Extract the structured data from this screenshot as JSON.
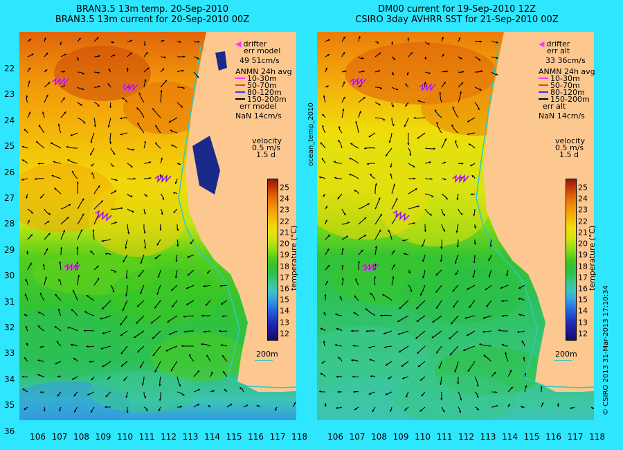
{
  "left_panel": {
    "title_line1": "BRAN3.5 13m temp. 20-Sep-2010",
    "title_line2": "BRAN3.5 13m current for 20-Sep-2010 00Z",
    "legend": {
      "drifter": "drifter",
      "err": "err model",
      "err_value": "49 51cm/s",
      "anmn": "ANMN 24h avg",
      "depths": [
        "10-30m",
        "50-70m",
        "80-120m",
        "150-200m"
      ],
      "err2": "err model",
      "err2_value": "NaN 14cm/s",
      "velocity": "velocity",
      "vel_value": "0.5 m/s",
      "vel_time": "1.5 d"
    },
    "side_label": "ocean_temp_2010",
    "contour_label": "200m"
  },
  "right_panel": {
    "title_line1": "DM00 current for 19-Sep-2010 12Z",
    "title_line2": "CSIRO 3day AVHRR SST for 21-Sep-2010 00Z",
    "legend": {
      "drifter": "drifter",
      "err": "err alt",
      "err_value": "33 36cm/s",
      "anmn": "ANMN 24h avg",
      "depths": [
        "10-30m",
        "50-70m",
        "80-120m",
        "150-200m"
      ],
      "err2": "err alt",
      "err2_value": "NaN 14cm/s",
      "velocity": "velocity",
      "vel_value": "0.5 m/s",
      "vel_time": "1.5 d"
    },
    "contour_label": "200m"
  },
  "depth_colors": [
    "#ff33ff",
    "#ff3300",
    "#3333ff",
    "#000000"
  ],
  "x_ticks": [
    "106",
    "107",
    "108",
    "109",
    "110",
    "111",
    "112",
    "113",
    "114",
    "115",
    "116",
    "117",
    "118"
  ],
  "y_ticks": [
    "22",
    "23",
    "24",
    "25",
    "26",
    "27",
    "28",
    "29",
    "30",
    "31",
    "32",
    "33",
    "34",
    "35",
    "36"
  ],
  "colorbar": {
    "label": "temperature (°C)",
    "ticks": [
      "25",
      "24",
      "23",
      "22",
      "21",
      "20",
      "19",
      "18",
      "17",
      "16",
      "15",
      "14",
      "13",
      "12"
    ],
    "min": 11.5,
    "max": 25.8
  },
  "footer": "© CSIRO 2013   31-Mar-2013 17:10:34",
  "colors": {
    "background": "#2fe6ff",
    "land": "#fcc890",
    "coastline_contour": "#2fc8c8"
  }
}
